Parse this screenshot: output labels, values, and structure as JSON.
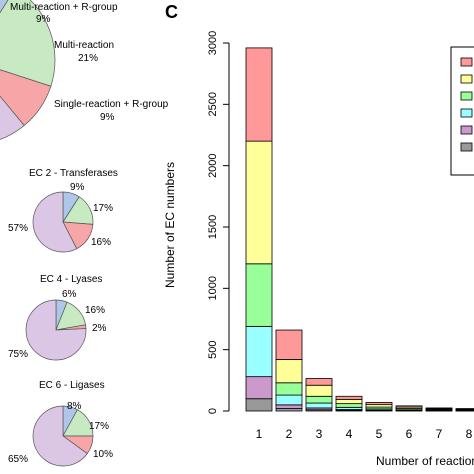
{
  "panel_c_label": "C",
  "left_panel": {
    "main_pie": {
      "labels": [
        {
          "text": "Multi-reaction + R-group",
          "pct": "9%"
        },
        {
          "text": "Multi-reaction",
          "pct": "21%"
        },
        {
          "text": "Single-reaction + R-group",
          "pct": "9%"
        }
      ]
    },
    "small_pies": [
      {
        "title": "EC 2 - Transferases",
        "pcts": [
          "9%",
          "17%",
          "16%",
          "57%"
        ]
      },
      {
        "title": "EC 4 - Lyases",
        "pcts": [
          "6%",
          "16%",
          "2%",
          "75%"
        ]
      },
      {
        "title": "EC 6 - Ligases",
        "pcts": [
          "8%",
          "17%",
          "10%",
          "65%"
        ]
      }
    ]
  },
  "chart_data": [
    {
      "type": "pie",
      "title": "",
      "partial": true,
      "slices": [
        {
          "label": "Multi-reaction + R-group",
          "value": 9,
          "color": "#aec7e8"
        },
        {
          "label": "Multi-reaction",
          "value": 21,
          "color": "#c7eac3"
        },
        {
          "label": "Single-reaction + R-group",
          "value": 9,
          "color": "#f6a6a6"
        },
        {
          "label": "",
          "value": 61,
          "color": "#dcc6e6"
        }
      ]
    },
    {
      "type": "pie",
      "title": "EC 2 - Transferases",
      "slices": [
        {
          "label": "",
          "value": 9,
          "color": "#aec7e8"
        },
        {
          "label": "",
          "value": 17,
          "color": "#c7eac3"
        },
        {
          "label": "",
          "value": 16,
          "color": "#f6a6a6"
        },
        {
          "label": "",
          "value": 57,
          "color": "#dcc6e6"
        }
      ]
    },
    {
      "type": "pie",
      "title": "EC 4 - Lyases",
      "slices": [
        {
          "label": "",
          "value": 6,
          "color": "#aec7e8"
        },
        {
          "label": "",
          "value": 16,
          "color": "#c7eac3"
        },
        {
          "label": "",
          "value": 2,
          "color": "#f6a6a6"
        },
        {
          "label": "",
          "value": 75,
          "color": "#dcc6e6"
        }
      ]
    },
    {
      "type": "pie",
      "title": "EC 6 - Ligases",
      "slices": [
        {
          "label": "",
          "value": 8,
          "color": "#aec7e8"
        },
        {
          "label": "",
          "value": 17,
          "color": "#c7eac3"
        },
        {
          "label": "",
          "value": 10,
          "color": "#f6a6a6"
        },
        {
          "label": "",
          "value": 65,
          "color": "#dcc6e6"
        }
      ]
    },
    {
      "type": "bar",
      "stacked": true,
      "title": "",
      "xlabel": "Number of reaction",
      "ylabel": "Number of EC numbers",
      "ylim": [
        0,
        3000
      ],
      "yticks": [
        0,
        500,
        1000,
        1500,
        2000,
        2500,
        3000
      ],
      "categories": [
        "1",
        "2",
        "3",
        "4",
        "5",
        "6",
        "7",
        "8"
      ],
      "series": [
        {
          "color": "#999999",
          "values": [
            100,
            20,
            10,
            5,
            3,
            2,
            1,
            1
          ]
        },
        {
          "color": "#cc99cc",
          "values": [
            180,
            30,
            15,
            7,
            4,
            2,
            2,
            1
          ]
        },
        {
          "color": "#99ffff",
          "values": [
            410,
            80,
            40,
            18,
            10,
            6,
            4,
            3
          ]
        },
        {
          "color": "#99ff99",
          "values": [
            510,
            100,
            55,
            30,
            15,
            10,
            7,
            5
          ]
        },
        {
          "color": "#ffff99",
          "values": [
            1000,
            190,
            90,
            35,
            20,
            12,
            6,
            5
          ]
        },
        {
          "color": "#ff9999",
          "values": [
            760,
            240,
            55,
            25,
            18,
            10,
            5,
            5
          ]
        }
      ],
      "legend_position": "top-right",
      "colors": {
        "axis": "#000000",
        "bar_stroke": "#000000"
      }
    }
  ]
}
